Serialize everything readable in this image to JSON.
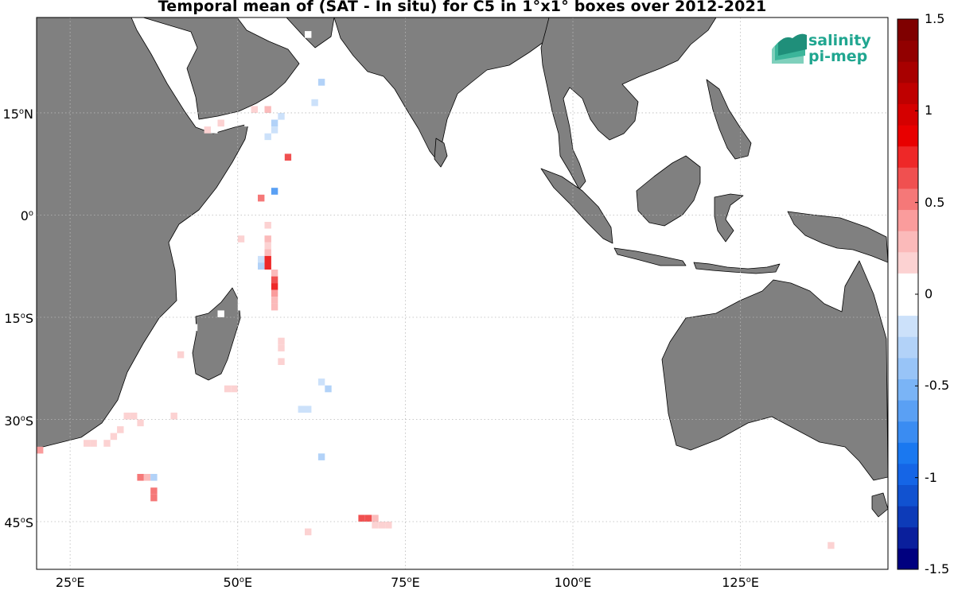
{
  "title": "Temporal mean of (SAT - In situ) for C5 in 1°x1° boxes over 2012-2021",
  "logo": {
    "line1": "salinity",
    "line2": "pi-mep"
  },
  "colors": {
    "land": "#808080",
    "coast": "#000000",
    "grid": "#b8b8b8",
    "logo": "#20a690"
  },
  "map": {
    "lon_range": [
      20,
      147
    ],
    "lat_range": [
      -52,
      29
    ]
  },
  "lat_ticks": [
    {
      "lat": 15,
      "num": "15",
      "hem": "N"
    },
    {
      "lat": 0,
      "num": "0",
      "hem": ""
    },
    {
      "lat": -15,
      "num": "15",
      "hem": "S"
    },
    {
      "lat": -30,
      "num": "30",
      "hem": "S"
    },
    {
      "lat": -45,
      "num": "45",
      "hem": "S"
    }
  ],
  "lon_ticks": [
    {
      "lon": 25,
      "num": "25",
      "hem": "E"
    },
    {
      "lon": 50,
      "num": "50",
      "hem": "E"
    },
    {
      "lon": 75,
      "num": "75",
      "hem": "E"
    },
    {
      "lon": 100,
      "num": "100",
      "hem": "E"
    },
    {
      "lon": 125,
      "num": "125",
      "hem": "E"
    }
  ],
  "colorbar": {
    "range": [
      -1.5,
      1.5
    ],
    "ticks": [
      {
        "value": 1.5,
        "label": "1.5"
      },
      {
        "value": 1,
        "label": "1"
      },
      {
        "value": 0.5,
        "label": "0.5"
      },
      {
        "value": 0,
        "label": "0"
      },
      {
        "value": -0.5,
        "label": "-0.5"
      },
      {
        "value": -1,
        "label": "-1"
      },
      {
        "value": -1.5,
        "label": "-1.5"
      }
    ],
    "colors": [
      "#00007f",
      "#0a1f9c",
      "#0d3bb8",
      "#1152d0",
      "#1565e6",
      "#1a78f0",
      "#3a8cf2",
      "#5aa0f4",
      "#7ab4f6",
      "#98c4f7",
      "#b2d2f8",
      "#cce1fa",
      "#ffffff",
      "#ffffff",
      "#fcd2d2",
      "#fbbaba",
      "#fa9c9c",
      "#f57878",
      "#f05050",
      "#ee2828",
      "#e80000",
      "#d50000",
      "#bf0000",
      "#a80000",
      "#920000",
      "#7f0000"
    ]
  },
  "chart_data": {
    "type": "heatmap",
    "title": "Temporal mean of (SAT - In situ) for C5 in 1°x1° boxes over 2012-2021",
    "unit_grid": "1°x1°",
    "period": "2012-2021",
    "value_range": [
      -1.5,
      1.5
    ],
    "cells": [
      {
        "lon": 60.5,
        "lat": 26.5,
        "v": 0.1
      },
      {
        "lon": 62.5,
        "lat": 23.5,
        "v": -0.1
      },
      {
        "lon": 62.5,
        "lat": 22.5,
        "v": -0.1
      },
      {
        "lon": 60.5,
        "lat": 21.5,
        "v": 0.1
      },
      {
        "lon": 61.5,
        "lat": 21.5,
        "v": 0.1
      },
      {
        "lon": 60.5,
        "lat": 20.5,
        "v": -0.1
      },
      {
        "lon": 62.5,
        "lat": 19.5,
        "v": -0.3
      },
      {
        "lon": 58.5,
        "lat": 18.5,
        "v": -0.1
      },
      {
        "lon": 60.5,
        "lat": 18.5,
        "v": -0.1
      },
      {
        "lon": 56.5,
        "lat": 17.5,
        "v": 0.1
      },
      {
        "lon": 58.5,
        "lat": 17.5,
        "v": -0.1
      },
      {
        "lon": 61.5,
        "lat": 16.5,
        "v": -0.2
      },
      {
        "lon": 52.5,
        "lat": 15.5,
        "v": 0.2
      },
      {
        "lon": 54.5,
        "lat": 15.5,
        "v": 0.3
      },
      {
        "lon": 55.5,
        "lat": 15.5,
        "v": 0.1
      },
      {
        "lon": 57.5,
        "lat": 15.5,
        "v": 0.1
      },
      {
        "lon": 53.5,
        "lat": 14.5,
        "v": 0.1
      },
      {
        "lon": 56.5,
        "lat": 14.5,
        "v": -0.2
      },
      {
        "lon": 59.5,
        "lat": 14.5,
        "v": 0.1
      },
      {
        "lon": 47.5,
        "lat": 13.5,
        "v": 0.2
      },
      {
        "lon": 49.5,
        "lat": 13.5,
        "v": 0.1
      },
      {
        "lon": 51.5,
        "lat": 13.5,
        "v": 0.1
      },
      {
        "lon": 55.5,
        "lat": 13.5,
        "v": -0.3
      },
      {
        "lon": 45.5,
        "lat": 12.5,
        "v": 0.2
      },
      {
        "lon": 46.5,
        "lat": 12.5,
        "v": 0.1
      },
      {
        "lon": 52.5,
        "lat": 12.5,
        "v": -0.1
      },
      {
        "lon": 53.5,
        "lat": 12.5,
        "v": 0.1
      },
      {
        "lon": 54.5,
        "lat": 12.5,
        "v": -0.1
      },
      {
        "lon": 55.5,
        "lat": 12.5,
        "v": -0.2
      },
      {
        "lon": 54.5,
        "lat": 11.5,
        "v": -0.2
      },
      {
        "lon": 56.5,
        "lat": 11.5,
        "v": -0.1
      },
      {
        "lon": 58.5,
        "lat": 11.5,
        "v": 0.1
      },
      {
        "lon": 54.5,
        "lat": 10.5,
        "v": -0.1
      },
      {
        "lon": 55.5,
        "lat": 10.5,
        "v": -0.1
      },
      {
        "lon": 56.5,
        "lat": 10.5,
        "v": 0.1
      },
      {
        "lon": 58.5,
        "lat": 10.5,
        "v": -0.1
      },
      {
        "lon": 54.5,
        "lat": 9.5,
        "v": 0.1
      },
      {
        "lon": 55.5,
        "lat": 9.5,
        "v": -0.1
      },
      {
        "lon": 56.5,
        "lat": 9.5,
        "v": -0.1
      },
      {
        "lon": 58.5,
        "lat": 9.5,
        "v": 0.1
      },
      {
        "lon": 57.5,
        "lat": 8.5,
        "v": 0.6
      },
      {
        "lon": 53.5,
        "lat": 8.5,
        "v": 0.1
      },
      {
        "lon": 54.5,
        "lat": 8.5,
        "v": -0.1
      },
      {
        "lon": 55.5,
        "lat": 8.5,
        "v": -0.1
      },
      {
        "lon": 56.5,
        "lat": 8.5,
        "v": 0.1
      },
      {
        "lon": 59.5,
        "lat": 7.5,
        "v": 0.1
      },
      {
        "lon": 60.5,
        "lat": 6.5,
        "v": -0.1
      },
      {
        "lon": 54.5,
        "lat": 6.5,
        "v": -0.1
      },
      {
        "lon": 54.5,
        "lat": 4.5,
        "v": 0.1
      },
      {
        "lon": 55.5,
        "lat": 3.5,
        "v": -0.6
      },
      {
        "lon": 58.5,
        "lat": 3.5,
        "v": -0.1
      },
      {
        "lon": 60.5,
        "lat": 3.5,
        "v": -0.1
      },
      {
        "lon": 53.5,
        "lat": 2.5,
        "v": 0.5
      },
      {
        "lon": 52.5,
        "lat": 1.5,
        "v": -0.1
      },
      {
        "lon": 53.5,
        "lat": 0.5,
        "v": -0.1
      },
      {
        "lon": 54.5,
        "lat": -0.5,
        "v": 0.1
      },
      {
        "lon": 53.5,
        "lat": -1.5,
        "v": -0.1
      },
      {
        "lon": 54.5,
        "lat": -1.5,
        "v": 0.2
      },
      {
        "lon": 54.5,
        "lat": -2.5,
        "v": 0.1
      },
      {
        "lon": 50.5,
        "lat": -3.5,
        "v": 0.2
      },
      {
        "lon": 53.5,
        "lat": -3.5,
        "v": -0.1
      },
      {
        "lon": 54.5,
        "lat": -3.5,
        "v": 0.3
      },
      {
        "lon": 54.5,
        "lat": -4.5,
        "v": 0.2
      },
      {
        "lon": 53.5,
        "lat": -5.5,
        "v": -0.1
      },
      {
        "lon": 54.5,
        "lat": -5.5,
        "v": 0.3
      },
      {
        "lon": 49.5,
        "lat": -5.5,
        "v": 0.1
      },
      {
        "lon": 54.5,
        "lat": -6.5,
        "v": 0.7
      },
      {
        "lon": 53.5,
        "lat": -6.5,
        "v": -0.2
      },
      {
        "lon": 54.5,
        "lat": -7.5,
        "v": 0.7
      },
      {
        "lon": 53.5,
        "lat": -7.5,
        "v": -0.3
      },
      {
        "lon": 55.5,
        "lat": -8.5,
        "v": 0.3
      },
      {
        "lon": 51.5,
        "lat": -9.5,
        "v": 0.1
      },
      {
        "lon": 55.5,
        "lat": -9.5,
        "v": 0.6
      },
      {
        "lon": 55.5,
        "lat": -10.5,
        "v": 0.7
      },
      {
        "lon": 55.5,
        "lat": -11.5,
        "v": 0.4
      },
      {
        "lon": 50.5,
        "lat": -11.5,
        "v": 0.1
      },
      {
        "lon": 44.5,
        "lat": -12.5,
        "v": -0.1
      },
      {
        "lon": 45.5,
        "lat": -12.5,
        "v": -0.1
      },
      {
        "lon": 50.5,
        "lat": -12.5,
        "v": 0.1
      },
      {
        "lon": 55.5,
        "lat": -12.5,
        "v": 0.3
      },
      {
        "lon": 50.5,
        "lat": -13.5,
        "v": 0.1
      },
      {
        "lon": 55.5,
        "lat": -13.5,
        "v": 0.3
      },
      {
        "lon": 47.5,
        "lat": -14.5,
        "v": -0.1
      },
      {
        "lon": 55.5,
        "lat": -14.5,
        "v": 0.1
      },
      {
        "lon": 43.5,
        "lat": -16.5,
        "v": 0.1
      },
      {
        "lon": 52.5,
        "lat": -16.5,
        "v": 0.1
      },
      {
        "lon": 53.5,
        "lat": -16.5,
        "v": 0.1
      },
      {
        "lon": 54.5,
        "lat": -16.5,
        "v": 0.1
      },
      {
        "lon": 56.5,
        "lat": -17.5,
        "v": 0.1
      },
      {
        "lon": 56.5,
        "lat": -18.5,
        "v": 0.2
      },
      {
        "lon": 41.5,
        "lat": -19.5,
        "v": 0.1
      },
      {
        "lon": 56.5,
        "lat": -19.5,
        "v": 0.2
      },
      {
        "lon": 41.5,
        "lat": -20.5,
        "v": 0.2
      },
      {
        "lon": 57.5,
        "lat": -20.5,
        "v": 0.1
      },
      {
        "lon": 55.5,
        "lat": -21.5,
        "v": 0.1
      },
      {
        "lon": 56.5,
        "lat": -21.5,
        "v": 0.2
      },
      {
        "lon": 49.5,
        "lat": -23.5,
        "v": 0.1
      },
      {
        "lon": 50.5,
        "lat": -23.5,
        "v": 0.1
      },
      {
        "lon": 52.5,
        "lat": -23.5,
        "v": -0.1
      },
      {
        "lon": 53.5,
        "lat": -23.5,
        "v": -0.1
      },
      {
        "lon": 58.5,
        "lat": -23.5,
        "v": -0.1
      },
      {
        "lon": 59.5,
        "lat": -23.5,
        "v": -0.1
      },
      {
        "lon": 61.5,
        "lat": -24.5,
        "v": -0.1
      },
      {
        "lon": 62.5,
        "lat": -24.5,
        "v": -0.2
      },
      {
        "lon": 45.5,
        "lat": -25.5,
        "v": -0.1
      },
      {
        "lon": 47.5,
        "lat": -25.5,
        "v": 0.1
      },
      {
        "lon": 46.5,
        "lat": -25.5,
        "v": 0.1
      },
      {
        "lon": 43.5,
        "lat": -25.5,
        "v": -0.1
      },
      {
        "lon": 48.5,
        "lat": -25.5,
        "v": 0.2
      },
      {
        "lon": 49.5,
        "lat": -25.5,
        "v": 0.2
      },
      {
        "lon": 63.5,
        "lat": -25.5,
        "v": -0.3
      },
      {
        "lon": 41.5,
        "lat": -26.5,
        "v": 0.1
      },
      {
        "lon": 35.5,
        "lat": -27.5,
        "v": -0.1
      },
      {
        "lon": 44.5,
        "lat": -28.5,
        "v": -0.1
      },
      {
        "lon": 52.5,
        "lat": -28.5,
        "v": 0.1
      },
      {
        "lon": 59.5,
        "lat": -28.5,
        "v": -0.2
      },
      {
        "lon": 60.5,
        "lat": -28.5,
        "v": -0.2
      },
      {
        "lon": 33.5,
        "lat": -29.5,
        "v": 0.2
      },
      {
        "lon": 34.5,
        "lat": -29.5,
        "v": 0.2
      },
      {
        "lon": 40.5,
        "lat": -29.5,
        "v": 0.2
      },
      {
        "lon": 35.5,
        "lat": -30.5,
        "v": 0.2
      },
      {
        "lon": 36.5,
        "lat": -30.5,
        "v": -0.1
      },
      {
        "lon": 32.5,
        "lat": -31.5,
        "v": 0.2
      },
      {
        "lon": 37.5,
        "lat": -31.5,
        "v": -0.1
      },
      {
        "lon": 31.5,
        "lat": -32.5,
        "v": 0.2
      },
      {
        "lon": 60.5,
        "lat": -32.5,
        "v": -0.1
      },
      {
        "lon": 61.5,
        "lat": -32.5,
        "v": -0.1
      },
      {
        "lon": 30.5,
        "lat": -33.5,
        "v": 0.2
      },
      {
        "lon": 27.5,
        "lat": -33.5,
        "v": 0.2
      },
      {
        "lon": 28.5,
        "lat": -33.5,
        "v": 0.2
      },
      {
        "lon": 37.5,
        "lat": -33.5,
        "v": -0.1
      },
      {
        "lon": 40.5,
        "lat": -33.5,
        "v": 0.1
      },
      {
        "lon": 61.5,
        "lat": -33.5,
        "v": -0.1
      },
      {
        "lon": 20.5,
        "lat": -34.5,
        "v": 0.4
      },
      {
        "lon": 37.5,
        "lat": -34.5,
        "v": -0.1
      },
      {
        "lon": 40.5,
        "lat": -35.5,
        "v": 0.1
      },
      {
        "lon": 62.5,
        "lat": -35.5,
        "v": -0.3
      },
      {
        "lon": 35.5,
        "lat": -37.5,
        "v": -0.1
      },
      {
        "lon": 36.5,
        "lat": -37.5,
        "v": -0.1
      },
      {
        "lon": 35.5,
        "lat": -38.5,
        "v": 0.5
      },
      {
        "lon": 36.5,
        "lat": -38.5,
        "v": 0.3
      },
      {
        "lon": 37.5,
        "lat": -38.5,
        "v": -0.3
      },
      {
        "lon": 65.5,
        "lat": -38.5,
        "v": 0.1
      },
      {
        "lon": 66.5,
        "lat": -39.5,
        "v": -0.1
      },
      {
        "lon": 66.5,
        "lat": -40.5,
        "v": -0.1
      },
      {
        "lon": 37.5,
        "lat": -40.5,
        "v": 0.5
      },
      {
        "lon": 37.5,
        "lat": -41.5,
        "v": 0.5
      },
      {
        "lon": 66.5,
        "lat": -41.5,
        "v": -0.1
      },
      {
        "lon": 67.5,
        "lat": -42.5,
        "v": -0.1
      },
      {
        "lon": 68.5,
        "lat": -43.5,
        "v": -0.1
      },
      {
        "lon": 68.5,
        "lat": -44.5,
        "v": 0.6
      },
      {
        "lon": 69.5,
        "lat": -44.5,
        "v": 0.6
      },
      {
        "lon": 70.5,
        "lat": -44.5,
        "v": 0.3
      },
      {
        "lon": 71.5,
        "lat": -45.5,
        "v": 0.2
      },
      {
        "lon": 72.5,
        "lat": -45.5,
        "v": 0.2
      },
      {
        "lon": 70.5,
        "lat": -45.5,
        "v": 0.2
      },
      {
        "lon": 41.5,
        "lat": -45.5,
        "v": -0.1
      },
      {
        "lon": 60.5,
        "lat": -46.5,
        "v": 0.2
      },
      {
        "lon": 72.5,
        "lat": -47.5,
        "v": -0.1
      },
      {
        "lon": 44.5,
        "lat": -47.5,
        "v": -0.1
      },
      {
        "lon": 143.5,
        "lat": -43.5,
        "v": -0.1
      },
      {
        "lon": 142.5,
        "lat": -44.5,
        "v": -0.1
      },
      {
        "lon": 141.5,
        "lat": -45.5,
        "v": -0.1
      },
      {
        "lon": 140.5,
        "lat": -46.5,
        "v": -0.1
      },
      {
        "lon": 139.5,
        "lat": -47.5,
        "v": -0.1
      },
      {
        "lon": 138.5,
        "lat": -48.5,
        "v": 0.2
      },
      {
        "lon": 137.5,
        "lat": -48.5,
        "v": 0.1
      },
      {
        "lon": 136.5,
        "lat": -47.5,
        "v": 0.1
      },
      {
        "lon": 136.5,
        "lat": -48.5,
        "v": 0.1
      }
    ]
  }
}
